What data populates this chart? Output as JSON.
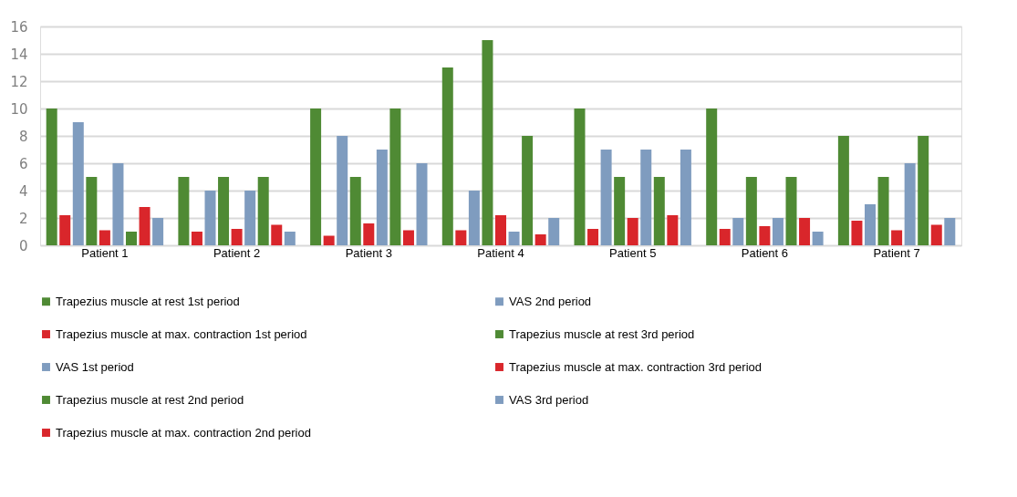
{
  "chart_data": {
    "type": "bar",
    "categories": [
      "Patient 1",
      "Patient 2",
      "Patient 3",
      "Patient 4",
      "Patient 5",
      "Patient 6",
      "Patient 7"
    ],
    "series": [
      {
        "name": "Trapezius muscle at rest 1st period",
        "color": "#4f8a34",
        "values": [
          10,
          5,
          10,
          13,
          10,
          10,
          8
        ]
      },
      {
        "name": "Trapezius muscle at max. contraction 1st period",
        "color": "#d9262b",
        "values": [
          2.2,
          1,
          0.7,
          1.1,
          1.2,
          1.2,
          1.8
        ]
      },
      {
        "name": "VAS 1st period",
        "color": "#7f9cbf",
        "values": [
          9,
          4,
          8,
          4,
          7,
          2,
          3
        ]
      },
      {
        "name": "Trapezius muscle at rest 2nd period",
        "color": "#4f8a34",
        "values": [
          5,
          5,
          5,
          15,
          5,
          5,
          5
        ]
      },
      {
        "name": "Trapezius muscle at max. contraction 2nd period",
        "color": "#d9262b",
        "values": [
          1.1,
          1.2,
          1.6,
          2.2,
          2,
          1.4,
          1.1
        ]
      },
      {
        "name": "VAS 2nd period",
        "color": "#7f9cbf",
        "values": [
          6,
          4,
          7,
          1,
          7,
          2,
          6
        ]
      },
      {
        "name": "Trapezius muscle at rest 3rd period",
        "color": "#4f8a34",
        "values": [
          1,
          5,
          10,
          8,
          5,
          5,
          8
        ]
      },
      {
        "name": "Trapezius muscle at max. contraction 3rd period",
        "color": "#d9262b",
        "values": [
          2.8,
          1.5,
          1.1,
          0.8,
          2.2,
          2,
          1.5
        ]
      },
      {
        "name": "VAS 3rd period",
        "color": "#7f9cbf",
        "values": [
          2,
          1,
          6,
          2,
          7,
          1,
          2
        ]
      }
    ],
    "ylim": [
      0,
      16
    ],
    "yticks": [
      0,
      2,
      4,
      6,
      8,
      10,
      12,
      14,
      16
    ],
    "grid": "y",
    "legend": "bottom"
  }
}
